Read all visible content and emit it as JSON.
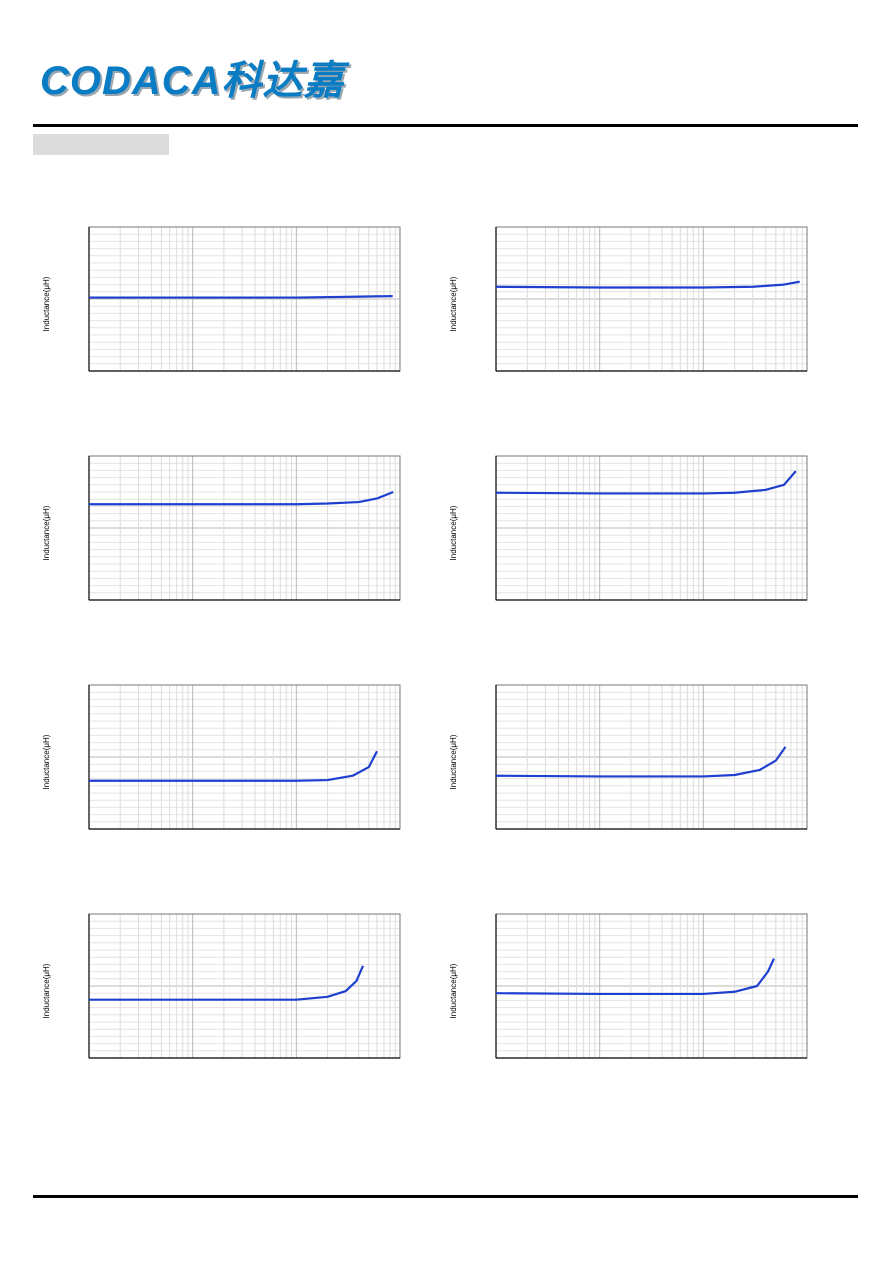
{
  "header": {
    "logo": "CODACA科达嘉"
  },
  "chart_data": [
    {
      "type": "line",
      "y_label": "Inductance(μH)",
      "log_x": true,
      "grid": true,
      "xlim": [
        1,
        1000
      ],
      "ylim": [
        0,
        2
      ],
      "series": [
        {
          "color": "#1f3fcf",
          "x": [
            1,
            10,
            100,
            300,
            850
          ],
          "values": [
            1.02,
            1.02,
            1.02,
            1.03,
            1.04
          ]
        }
      ]
    },
    {
      "type": "line",
      "y_label": "Inductance(μH)",
      "log_x": true,
      "grid": true,
      "xlim": [
        1,
        1000
      ],
      "ylim": [
        0,
        2
      ],
      "series": [
        {
          "color": "#1f3fcf",
          "x": [
            1,
            10,
            100,
            300,
            600,
            850
          ],
          "values": [
            1.17,
            1.16,
            1.16,
            1.17,
            1.2,
            1.24
          ]
        }
      ]
    },
    {
      "type": "line",
      "y_label": "Inductance(μH)",
      "log_x": true,
      "grid": true,
      "xlim": [
        1,
        1000
      ],
      "ylim": [
        0,
        2
      ],
      "series": [
        {
          "color": "#1f3fcf",
          "x": [
            1,
            10,
            100,
            200,
            400,
            600,
            860
          ],
          "values": [
            1.33,
            1.33,
            1.33,
            1.34,
            1.36,
            1.41,
            1.5
          ]
        }
      ]
    },
    {
      "type": "line",
      "y_label": "Inductance(μH)",
      "log_x": true,
      "grid": true,
      "xlim": [
        1,
        1000
      ],
      "ylim": [
        0,
        2
      ],
      "series": [
        {
          "color": "#1f3fcf",
          "x": [
            1,
            10,
            100,
            200,
            400,
            600,
            780
          ],
          "values": [
            1.49,
            1.48,
            1.48,
            1.49,
            1.53,
            1.6,
            1.79
          ]
        }
      ]
    },
    {
      "type": "line",
      "y_label": "Inductance(μH)",
      "log_x": true,
      "grid": true,
      "xlim": [
        1,
        1000
      ],
      "ylim": [
        0,
        2
      ],
      "series": [
        {
          "color": "#1f3fcf",
          "x": [
            1,
            10,
            100,
            200,
            350,
            500,
            600
          ],
          "values": [
            0.67,
            0.67,
            0.67,
            0.68,
            0.74,
            0.86,
            1.08
          ]
        }
      ]
    },
    {
      "type": "line",
      "y_label": "Inductance(μH)",
      "log_x": true,
      "grid": true,
      "xlim": [
        1,
        1000
      ],
      "ylim": [
        0,
        2
      ],
      "series": [
        {
          "color": "#1f3fcf",
          "x": [
            1,
            10,
            100,
            200,
            350,
            500,
            620
          ],
          "values": [
            0.74,
            0.73,
            0.73,
            0.75,
            0.82,
            0.95,
            1.14
          ]
        }
      ]
    },
    {
      "type": "line",
      "y_label": "Inductance(μH)",
      "log_x": true,
      "grid": true,
      "xlim": [
        1,
        1000
      ],
      "ylim": [
        0,
        2
      ],
      "series": [
        {
          "color": "#1f3fcf",
          "x": [
            1,
            10,
            100,
            200,
            300,
            380,
            440
          ],
          "values": [
            0.81,
            0.81,
            0.81,
            0.85,
            0.93,
            1.07,
            1.28
          ]
        }
      ]
    },
    {
      "type": "line",
      "y_label": "Inductance(μH)",
      "log_x": true,
      "grid": true,
      "xlim": [
        1,
        1000
      ],
      "ylim": [
        0,
        2
      ],
      "series": [
        {
          "color": "#1f3fcf",
          "x": [
            1,
            10,
            100,
            200,
            330,
            420,
            480
          ],
          "values": [
            0.9,
            0.89,
            0.89,
            0.92,
            1.0,
            1.2,
            1.38
          ]
        }
      ]
    }
  ]
}
